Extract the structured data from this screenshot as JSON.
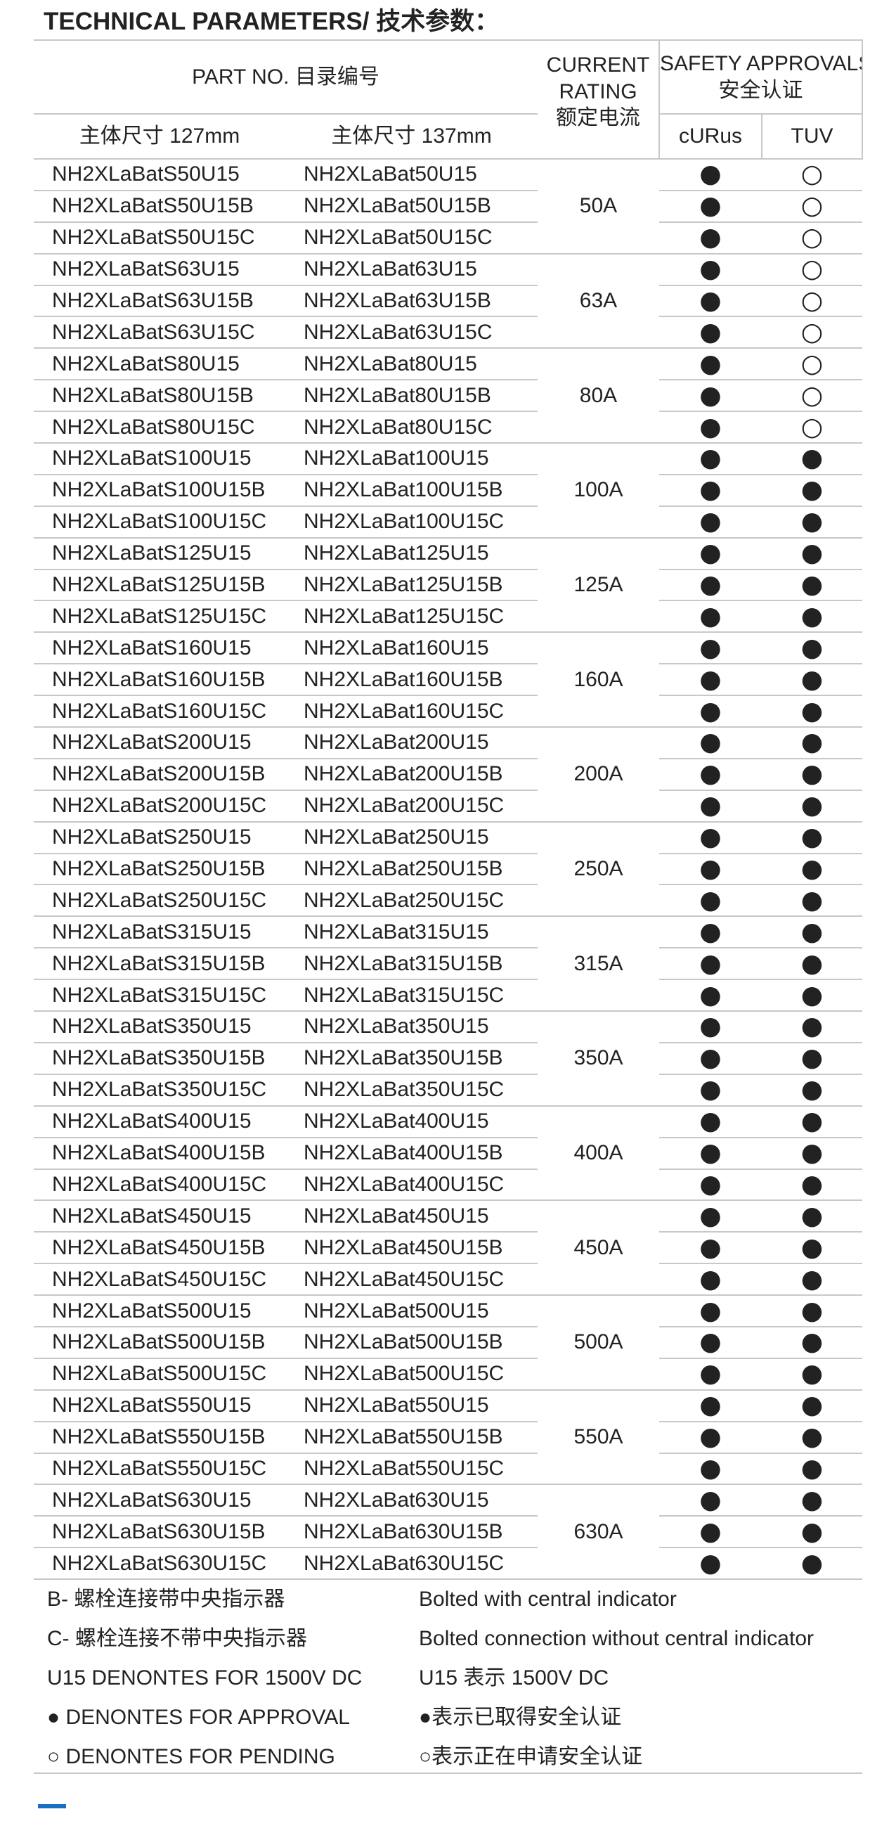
{
  "title": "TECHNICAL PARAMETERS/ 技术参数：",
  "header": {
    "part_no": "PART  NO. 目录编号",
    "current_rating": [
      "CURRENT",
      "RATING",
      "额定电流"
    ],
    "safety_approvals": [
      "SAFETY APPROVALS",
      "安全认证"
    ],
    "size127": "主体尺寸 127mm",
    "size137": "主体尺寸 137mm",
    "curus": "cURus",
    "tuv": "TUV"
  },
  "groups": [
    {
      "rating": "50A",
      "rows": [
        {
          "a": "NH2XLaBatS50U15",
          "b": "NH2XLaBat50U15",
          "curus": "●",
          "tuv": "○"
        },
        {
          "a": "NH2XLaBatS50U15B",
          "b": "NH2XLaBat50U15B",
          "curus": "●",
          "tuv": "○"
        },
        {
          "a": "NH2XLaBatS50U15C",
          "b": "NH2XLaBat50U15C",
          "curus": "●",
          "tuv": "○"
        }
      ]
    },
    {
      "rating": "63A",
      "rows": [
        {
          "a": "NH2XLaBatS63U15",
          "b": "NH2XLaBat63U15",
          "curus": "●",
          "tuv": "○"
        },
        {
          "a": "NH2XLaBatS63U15B",
          "b": "NH2XLaBat63U15B",
          "curus": "●",
          "tuv": "○"
        },
        {
          "a": "NH2XLaBatS63U15C",
          "b": "NH2XLaBat63U15C",
          "curus": "●",
          "tuv": "○"
        }
      ]
    },
    {
      "rating": "80A",
      "rows": [
        {
          "a": "NH2XLaBatS80U15",
          "b": "NH2XLaBat80U15",
          "curus": "●",
          "tuv": "○"
        },
        {
          "a": "NH2XLaBatS80U15B",
          "b": "NH2XLaBat80U15B",
          "curus": "●",
          "tuv": "○"
        },
        {
          "a": "NH2XLaBatS80U15C",
          "b": "NH2XLaBat80U15C",
          "curus": "●",
          "tuv": "○"
        }
      ]
    },
    {
      "rating": "100A",
      "rows": [
        {
          "a": "NH2XLaBatS100U15",
          "b": "NH2XLaBat100U15",
          "curus": "●",
          "tuv": "●"
        },
        {
          "a": "NH2XLaBatS100U15B",
          "b": "NH2XLaBat100U15B",
          "curus": "●",
          "tuv": "●"
        },
        {
          "a": "NH2XLaBatS100U15C",
          "b": "NH2XLaBat100U15C",
          "curus": "●",
          "tuv": "●"
        }
      ]
    },
    {
      "rating": "125A",
      "rows": [
        {
          "a": "NH2XLaBatS125U15",
          "b": "NH2XLaBat125U15",
          "curus": "●",
          "tuv": "●"
        },
        {
          "a": "NH2XLaBatS125U15B",
          "b": "NH2XLaBat125U15B",
          "curus": "●",
          "tuv": "●"
        },
        {
          "a": "NH2XLaBatS125U15C",
          "b": "NH2XLaBat125U15C",
          "curus": "●",
          "tuv": "●"
        }
      ]
    },
    {
      "rating": "160A",
      "rows": [
        {
          "a": "NH2XLaBatS160U15",
          "b": "NH2XLaBat160U15",
          "curus": "●",
          "tuv": "●"
        },
        {
          "a": "NH2XLaBatS160U15B",
          "b": "NH2XLaBat160U15B",
          "curus": "●",
          "tuv": "●"
        },
        {
          "a": "NH2XLaBatS160U15C",
          "b": "NH2XLaBat160U15C",
          "curus": "●",
          "tuv": "●"
        }
      ]
    },
    {
      "rating": "200A",
      "rows": [
        {
          "a": "NH2XLaBatS200U15",
          "b": "NH2XLaBat200U15",
          "curus": "●",
          "tuv": "●"
        },
        {
          "a": "NH2XLaBatS200U15B",
          "b": "NH2XLaBat200U15B",
          "curus": "●",
          "tuv": "●"
        },
        {
          "a": "NH2XLaBatS200U15C",
          "b": "NH2XLaBat200U15C",
          "curus": "●",
          "tuv": "●"
        }
      ]
    },
    {
      "rating": "250A",
      "rows": [
        {
          "a": "NH2XLaBatS250U15",
          "b": "NH2XLaBat250U15",
          "curus": "●",
          "tuv": "●"
        },
        {
          "a": "NH2XLaBatS250U15B",
          "b": "NH2XLaBat250U15B",
          "curus": "●",
          "tuv": "●"
        },
        {
          "a": "NH2XLaBatS250U15C",
          "b": "NH2XLaBat250U15C",
          "curus": "●",
          "tuv": "●"
        }
      ]
    },
    {
      "rating": "315A",
      "rows": [
        {
          "a": "NH2XLaBatS315U15",
          "b": "NH2XLaBat315U15",
          "curus": "●",
          "tuv": "●"
        },
        {
          "a": "NH2XLaBatS315U15B",
          "b": "NH2XLaBat315U15B",
          "curus": "●",
          "tuv": "●"
        },
        {
          "a": "NH2XLaBatS315U15C",
          "b": "NH2XLaBat315U15C",
          "curus": "●",
          "tuv": "●"
        }
      ]
    },
    {
      "rating": "350A",
      "rows": [
        {
          "a": "NH2XLaBatS350U15",
          "b": "NH2XLaBat350U15",
          "curus": "●",
          "tuv": "●"
        },
        {
          "a": "NH2XLaBatS350U15B",
          "b": "NH2XLaBat350U15B",
          "curus": "●",
          "tuv": "●"
        },
        {
          "a": "NH2XLaBatS350U15C",
          "b": "NH2XLaBat350U15C",
          "curus": "●",
          "tuv": "●"
        }
      ]
    },
    {
      "rating": "400A",
      "rows": [
        {
          "a": "NH2XLaBatS400U15",
          "b": "NH2XLaBat400U15",
          "curus": "●",
          "tuv": "●"
        },
        {
          "a": "NH2XLaBatS400U15B",
          "b": "NH2XLaBat400U15B",
          "curus": "●",
          "tuv": "●"
        },
        {
          "a": "NH2XLaBatS400U15C",
          "b": "NH2XLaBat400U15C",
          "curus": "●",
          "tuv": "●"
        }
      ]
    },
    {
      "rating": "450A",
      "rows": [
        {
          "a": "NH2XLaBatS450U15",
          "b": "NH2XLaBat450U15",
          "curus": "●",
          "tuv": "●"
        },
        {
          "a": "NH2XLaBatS450U15B",
          "b": "NH2XLaBat450U15B",
          "curus": "●",
          "tuv": "●"
        },
        {
          "a": "NH2XLaBatS450U15C",
          "b": "NH2XLaBat450U15C",
          "curus": "●",
          "tuv": "●"
        }
      ]
    },
    {
      "rating": "500A",
      "rows": [
        {
          "a": "NH2XLaBatS500U15",
          "b": "NH2XLaBat500U15",
          "curus": "●",
          "tuv": "●"
        },
        {
          "a": "NH2XLaBatS500U15B",
          "b": "NH2XLaBat500U15B",
          "curus": "●",
          "tuv": "●"
        },
        {
          "a": "NH2XLaBatS500U15C",
          "b": "NH2XLaBat500U15C",
          "curus": "●",
          "tuv": "●"
        }
      ]
    },
    {
      "rating": "550A",
      "rows": [
        {
          "a": "NH2XLaBatS550U15",
          "b": "NH2XLaBat550U15",
          "curus": "●",
          "tuv": "●"
        },
        {
          "a": "NH2XLaBatS550U15B",
          "b": "NH2XLaBat550U15B",
          "curus": "●",
          "tuv": "●"
        },
        {
          "a": "NH2XLaBatS550U15C",
          "b": "NH2XLaBat550U15C",
          "curus": "●",
          "tuv": "●"
        }
      ]
    },
    {
      "rating": "630A",
      "rows": [
        {
          "a": "NH2XLaBatS630U15",
          "b": "NH2XLaBat630U15",
          "curus": "●",
          "tuv": "●"
        },
        {
          "a": "NH2XLaBatS630U15B",
          "b": "NH2XLaBat630U15B",
          "curus": "●",
          "tuv": "●"
        },
        {
          "a": "NH2XLaBatS630U15C",
          "b": "NH2XLaBat630U15C",
          "curus": "●",
          "tuv": "●"
        }
      ]
    }
  ],
  "notes": [
    [
      "B- 螺栓连接带中央指示器",
      "Bolted with central indicator"
    ],
    [
      "C- 螺栓连接不带中央指示器",
      "Bolted connection without central indicator"
    ],
    [
      "U15 DENONTES FOR 1500V DC",
      "U15 表示 1500V DC"
    ],
    [
      "● DENONTES FOR APPROVAL",
      "●表示已取得安全认证"
    ],
    [
      "○ DENONTES FOR PENDING",
      "○表示正在申请安全认证"
    ]
  ]
}
